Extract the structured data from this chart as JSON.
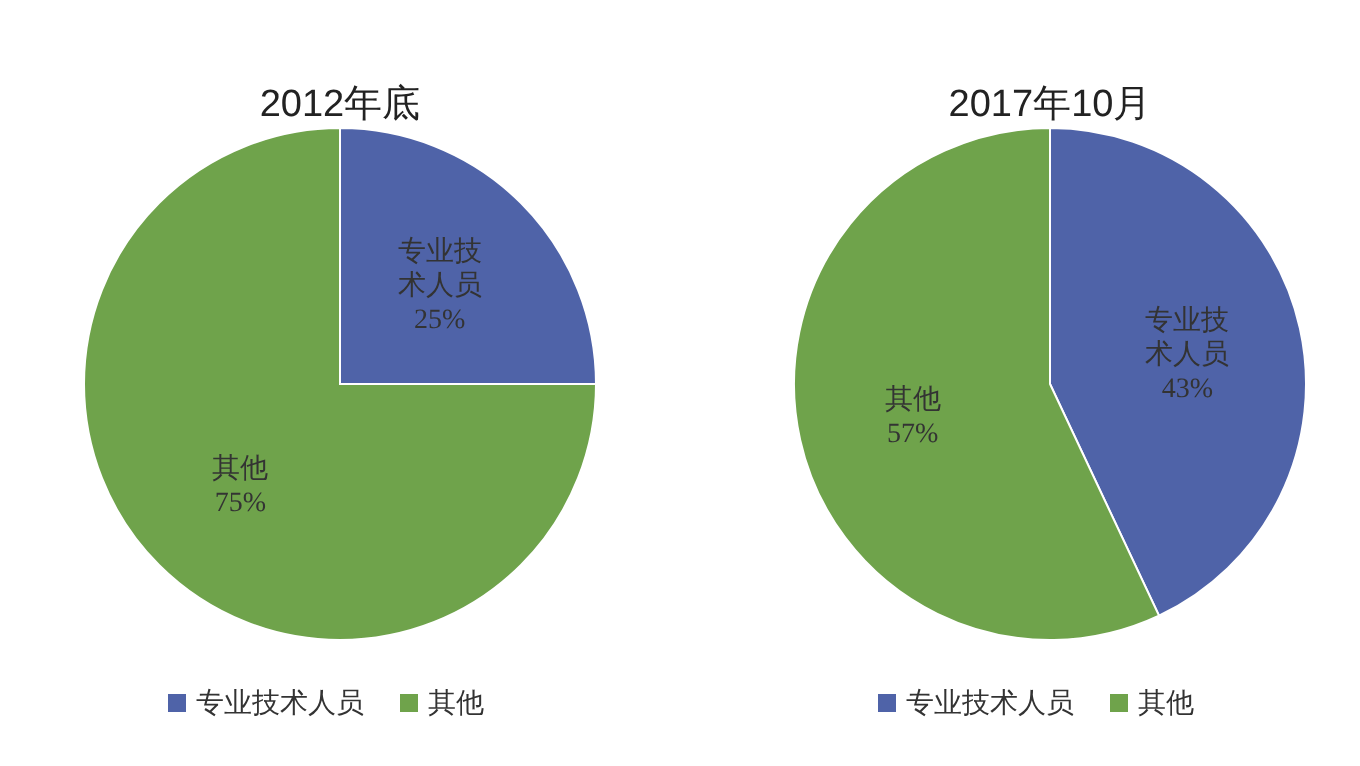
{
  "chart_data": [
    {
      "type": "pie",
      "title": "2012年底",
      "categories": [
        "专业技术人员",
        "其他"
      ],
      "values": [
        25,
        75
      ],
      "colors": [
        "#4f63a8",
        "#6fa34b"
      ],
      "value_labels": [
        "25%",
        "75%"
      ],
      "legend": "bottom"
    },
    {
      "type": "pie",
      "title": "2017年10月",
      "categories": [
        "专业技术人员",
        "其他"
      ],
      "values": [
        43,
        57
      ],
      "colors": [
        "#4f63a8",
        "#6fa34b"
      ],
      "value_labels": [
        "43%",
        "57%"
      ],
      "legend": "bottom"
    }
  ]
}
